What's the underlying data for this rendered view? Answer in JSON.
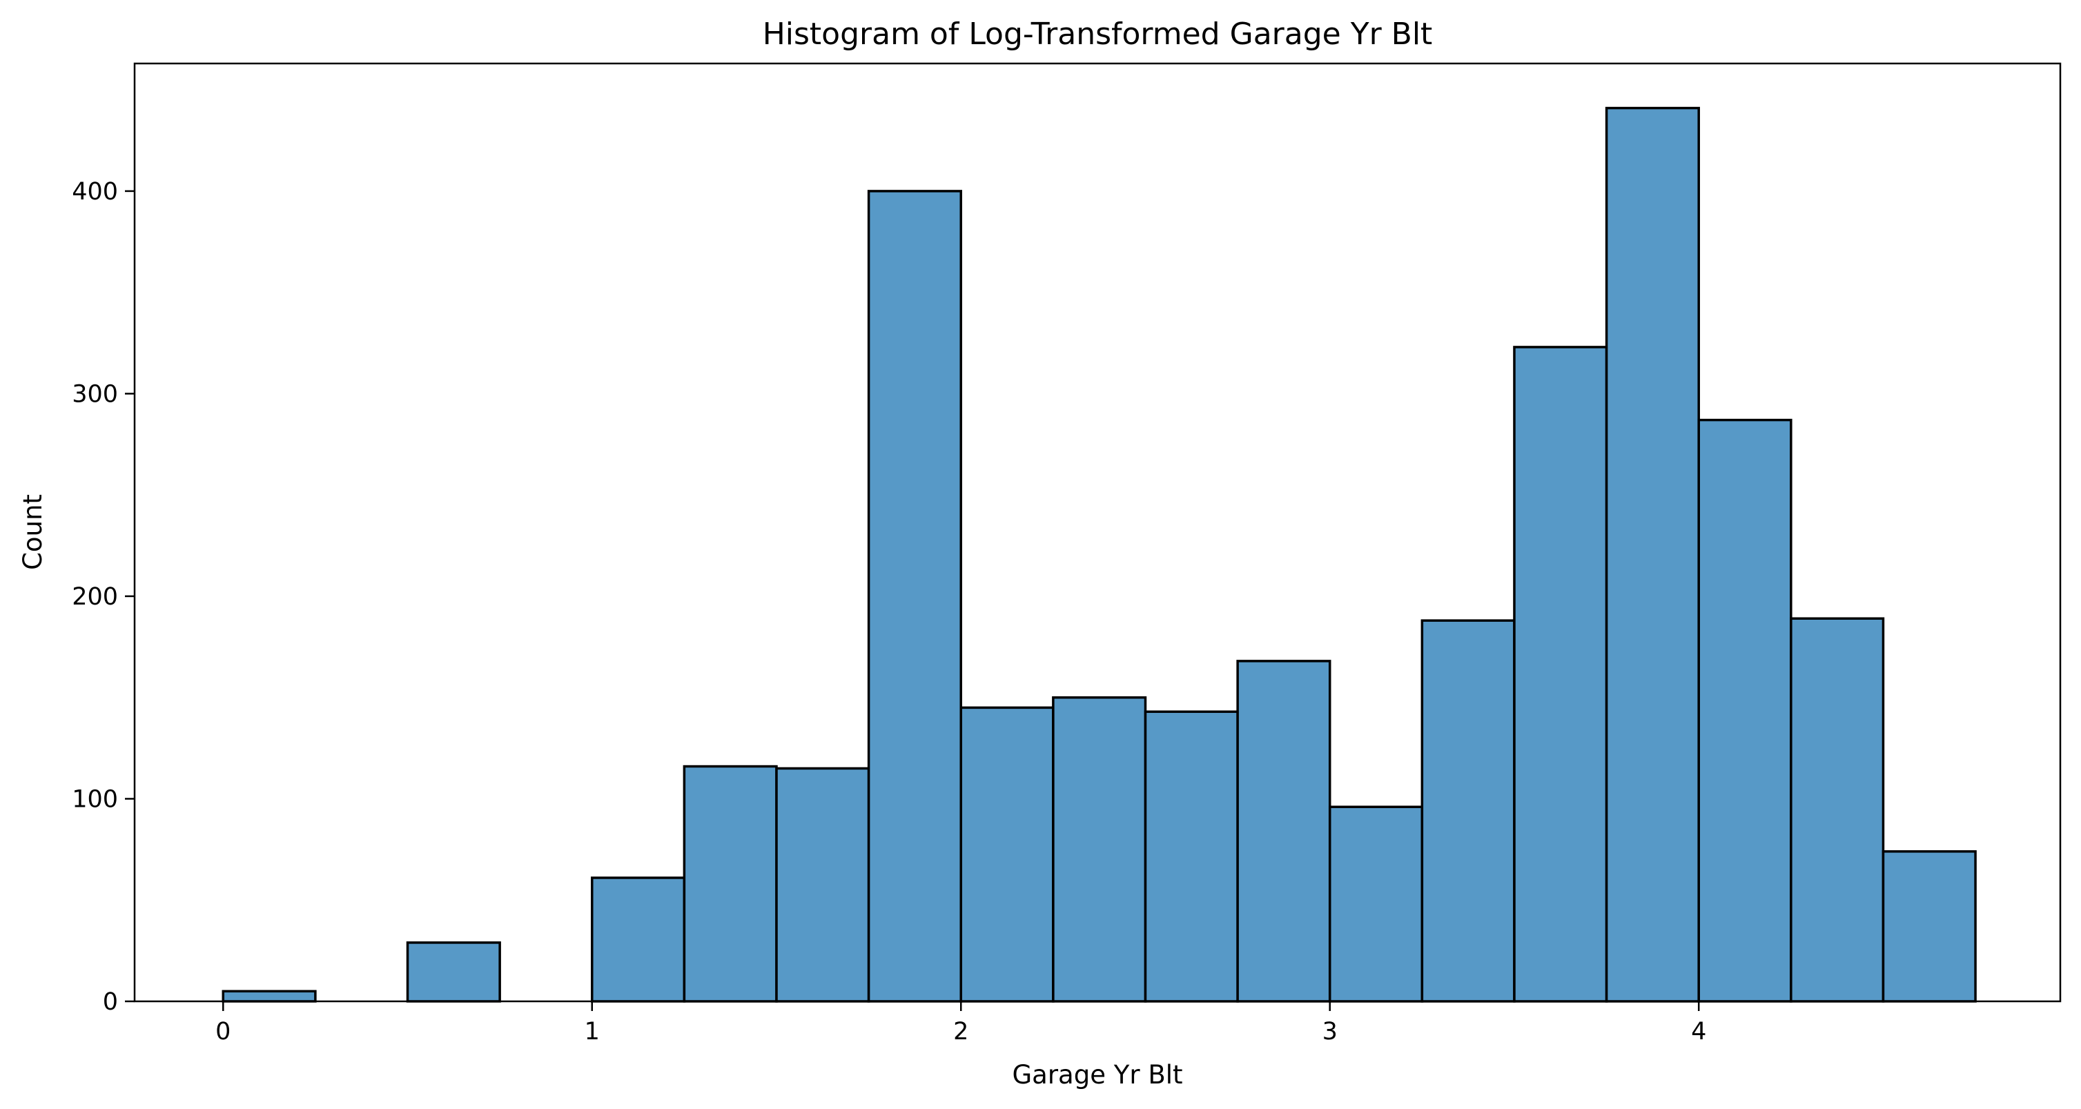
{
  "chart_data": {
    "type": "bar",
    "title": "Histogram of Log-Transformed Garage Yr Blt",
    "xlabel": "Garage Yr Blt",
    "ylabel": "Count",
    "xlim": [
      -0.24,
      4.98
    ],
    "ylim": [
      0,
      463
    ],
    "bin_width": 0.25,
    "bins": [
      {
        "start": 0.0,
        "count": 5
      },
      {
        "start": 0.25,
        "count": 0
      },
      {
        "start": 0.5,
        "count": 29
      },
      {
        "start": 0.75,
        "count": 0
      },
      {
        "start": 1.0,
        "count": 61
      },
      {
        "start": 1.25,
        "count": 116
      },
      {
        "start": 1.5,
        "count": 115
      },
      {
        "start": 1.75,
        "count": 400
      },
      {
        "start": 2.0,
        "count": 145
      },
      {
        "start": 2.25,
        "count": 150
      },
      {
        "start": 2.5,
        "count": 143
      },
      {
        "start": 2.75,
        "count": 168
      },
      {
        "start": 3.0,
        "count": 96
      },
      {
        "start": 3.25,
        "count": 188
      },
      {
        "start": 3.5,
        "count": 323
      },
      {
        "start": 3.75,
        "count": 441
      },
      {
        "start": 4.0,
        "count": 287
      },
      {
        "start": 4.25,
        "count": 189
      },
      {
        "start": 4.5,
        "count": 74
      }
    ],
    "xticks": [
      0,
      1,
      2,
      3,
      4
    ],
    "xtick_labels": [
      "0",
      "1",
      "2",
      "3",
      "4"
    ],
    "yticks": [
      0,
      100,
      200,
      300,
      400
    ],
    "ytick_labels": [
      "0",
      "100",
      "200",
      "300",
      "400"
    ],
    "bar_color": "#5799c7",
    "edge_color": "#000000",
    "grid": false
  }
}
